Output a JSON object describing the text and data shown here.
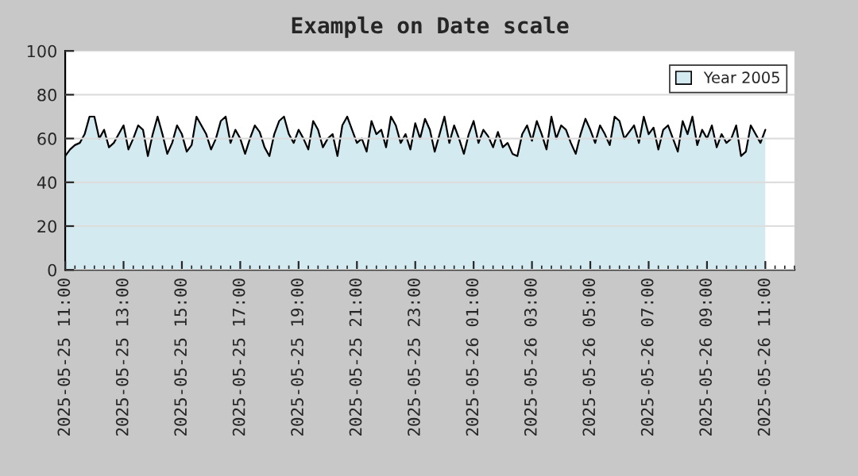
{
  "chart_data": {
    "type": "area",
    "title": "Example on Date scale",
    "x": [
      "2025-05-25T11:00",
      "2025-05-25T11:10",
      "2025-05-25T11:20",
      "2025-05-25T11:30",
      "2025-05-25T11:40",
      "2025-05-25T11:50",
      "2025-05-25T12:00",
      "2025-05-25T12:10",
      "2025-05-25T12:20",
      "2025-05-25T12:30",
      "2025-05-25T12:40",
      "2025-05-25T12:50",
      "2025-05-25T13:00",
      "2025-05-25T13:10",
      "2025-05-25T13:20",
      "2025-05-25T13:30",
      "2025-05-25T13:40",
      "2025-05-25T13:50",
      "2025-05-25T14:00",
      "2025-05-25T14:10",
      "2025-05-25T14:20",
      "2025-05-25T14:30",
      "2025-05-25T14:40",
      "2025-05-25T14:50",
      "2025-05-25T15:00",
      "2025-05-25T15:10",
      "2025-05-25T15:20",
      "2025-05-25T15:30",
      "2025-05-25T15:40",
      "2025-05-25T15:50",
      "2025-05-25T16:00",
      "2025-05-25T16:10",
      "2025-05-25T16:20",
      "2025-05-25T16:30",
      "2025-05-25T16:40",
      "2025-05-25T16:50",
      "2025-05-25T17:00",
      "2025-05-25T17:10",
      "2025-05-25T17:20",
      "2025-05-25T17:30",
      "2025-05-25T17:40",
      "2025-05-25T17:50",
      "2025-05-25T18:00",
      "2025-05-25T18:10",
      "2025-05-25T18:20",
      "2025-05-25T18:30",
      "2025-05-25T18:40",
      "2025-05-25T18:50",
      "2025-05-25T19:00",
      "2025-05-25T19:10",
      "2025-05-25T19:20",
      "2025-05-25T19:30",
      "2025-05-25T19:40",
      "2025-05-25T19:50",
      "2025-05-25T20:00",
      "2025-05-25T20:10",
      "2025-05-25T20:20",
      "2025-05-25T20:30",
      "2025-05-25T20:40",
      "2025-05-25T20:50",
      "2025-05-25T21:00",
      "2025-05-25T21:10",
      "2025-05-25T21:20",
      "2025-05-25T21:30",
      "2025-05-25T21:40",
      "2025-05-25T21:50",
      "2025-05-25T22:00",
      "2025-05-25T22:10",
      "2025-05-25T22:20",
      "2025-05-25T22:30",
      "2025-05-25T22:40",
      "2025-05-25T22:50",
      "2025-05-25T23:00",
      "2025-05-25T23:10",
      "2025-05-25T23:20",
      "2025-05-25T23:30",
      "2025-05-25T23:40",
      "2025-05-25T23:50",
      "2025-05-26T00:00",
      "2025-05-26T00:10",
      "2025-05-26T00:20",
      "2025-05-26T00:30",
      "2025-05-26T00:40",
      "2025-05-26T00:50",
      "2025-05-26T01:00",
      "2025-05-26T01:10",
      "2025-05-26T01:20",
      "2025-05-26T01:30",
      "2025-05-26T01:40",
      "2025-05-26T01:50",
      "2025-05-26T02:00",
      "2025-05-26T02:10",
      "2025-05-26T02:20",
      "2025-05-26T02:30",
      "2025-05-26T02:40",
      "2025-05-26T02:50",
      "2025-05-26T03:00",
      "2025-05-26T03:10",
      "2025-05-26T03:20",
      "2025-05-26T03:30",
      "2025-05-26T03:40",
      "2025-05-26T03:50",
      "2025-05-26T04:00",
      "2025-05-26T04:10",
      "2025-05-26T04:20",
      "2025-05-26T04:30",
      "2025-05-26T04:40",
      "2025-05-26T04:50",
      "2025-05-26T05:00",
      "2025-05-26T05:10",
      "2025-05-26T05:20",
      "2025-05-26T05:30",
      "2025-05-26T05:40",
      "2025-05-26T05:50",
      "2025-05-26T06:00",
      "2025-05-26T06:10",
      "2025-05-26T06:20",
      "2025-05-26T06:30",
      "2025-05-26T06:40",
      "2025-05-26T06:50",
      "2025-05-26T07:00",
      "2025-05-26T07:10",
      "2025-05-26T07:20",
      "2025-05-26T07:30",
      "2025-05-26T07:40",
      "2025-05-26T07:50",
      "2025-05-26T08:00",
      "2025-05-26T08:10",
      "2025-05-26T08:20",
      "2025-05-26T08:30",
      "2025-05-26T08:40",
      "2025-05-26T08:50",
      "2025-05-26T09:00",
      "2025-05-26T09:10",
      "2025-05-26T09:20",
      "2025-05-26T09:30",
      "2025-05-26T09:40",
      "2025-05-26T09:50",
      "2025-05-26T10:00",
      "2025-05-26T10:10",
      "2025-05-26T10:20",
      "2025-05-26T10:30",
      "2025-05-26T10:40",
      "2025-05-26T10:50",
      "2025-05-26T11:00"
    ],
    "series": [
      {
        "name": "Year 2005",
        "color": "#d4eaf1",
        "values": [
          52,
          55,
          57,
          58,
          62,
          70,
          70,
          60,
          64,
          56,
          58,
          62,
          66,
          55,
          60,
          66,
          64,
          52,
          62,
          70,
          62,
          53,
          58,
          66,
          62,
          54,
          57,
          70,
          66,
          62,
          55,
          60,
          68,
          70,
          58,
          64,
          60,
          53,
          60,
          66,
          63,
          56,
          52,
          62,
          68,
          70,
          62,
          58,
          64,
          60,
          55,
          68,
          64,
          56,
          60,
          62,
          52,
          66,
          70,
          64,
          58,
          60,
          54,
          68,
          62,
          64,
          56,
          70,
          66,
          58,
          62,
          55,
          67,
          60,
          69,
          64,
          54,
          62,
          70,
          58,
          66,
          60,
          53,
          62,
          68,
          58,
          64,
          61,
          56,
          63,
          56,
          58,
          53,
          52,
          62,
          66,
          59,
          68,
          62,
          55,
          70,
          60,
          66,
          64,
          58,
          53,
          62,
          69,
          64,
          58,
          66,
          62,
          57,
          70,
          68,
          60,
          63,
          66,
          58,
          70,
          62,
          65,
          55,
          64,
          66,
          60,
          54,
          68,
          62,
          70,
          57,
          64,
          60,
          66,
          56,
          62,
          58,
          60,
          66,
          52,
          54,
          66,
          62,
          58,
          64
        ]
      }
    ],
    "xlim": [
      "2025-05-25T11:00",
      "2025-05-26T12:00"
    ],
    "xticks": [
      {
        "value": "2025-05-25T11:00",
        "label": "2025-05-25 11:00"
      },
      {
        "value": "2025-05-25T13:00",
        "label": "2025-05-25 13:00"
      },
      {
        "value": "2025-05-25T15:00",
        "label": "2025-05-25 15:00"
      },
      {
        "value": "2025-05-25T17:00",
        "label": "2025-05-25 17:00"
      },
      {
        "value": "2025-05-25T19:00",
        "label": "2025-05-25 19:00"
      },
      {
        "value": "2025-05-25T21:00",
        "label": "2025-05-25 21:00"
      },
      {
        "value": "2025-05-25T23:00",
        "label": "2025-05-25 23:00"
      },
      {
        "value": "2025-05-26T01:00",
        "label": "2025-05-26 01:00"
      },
      {
        "value": "2025-05-26T03:00",
        "label": "2025-05-26 03:00"
      },
      {
        "value": "2025-05-26T05:00",
        "label": "2025-05-26 05:00"
      },
      {
        "value": "2025-05-26T07:00",
        "label": "2025-05-26 07:00"
      },
      {
        "value": "2025-05-26T09:00",
        "label": "2025-05-26 09:00"
      },
      {
        "value": "2025-05-26T11:00",
        "label": "2025-05-26 11:00"
      }
    ],
    "ylim": [
      0,
      100
    ],
    "yticks": [
      0,
      20,
      40,
      60,
      80,
      100
    ],
    "grid": "y",
    "legend": "top right"
  }
}
